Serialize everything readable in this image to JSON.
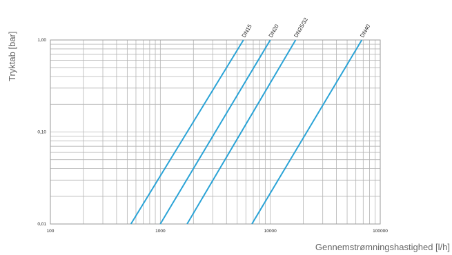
{
  "chart_data": {
    "type": "line",
    "xscale": "log",
    "yscale": "log",
    "xlim": [
      100,
      100000
    ],
    "ylim": [
      0.01,
      1.0
    ],
    "xlabel": "Gennemstrømningshastighed [l/h]",
    "ylabel": "Tryktab [bar]",
    "x_ticks": [
      {
        "value": 100,
        "label": "100"
      },
      {
        "value": 1000,
        "label": "1000"
      },
      {
        "value": 10000,
        "label": "10000"
      },
      {
        "value": 100000,
        "label": "100000"
      }
    ],
    "y_ticks": [
      {
        "value": 0.01,
        "label": "0,01"
      },
      {
        "value": 0.1,
        "label": "0,10"
      },
      {
        "value": 1.0,
        "label": "1,00"
      }
    ],
    "grid": true,
    "series_color": "#2aa3d6",
    "series": [
      {
        "name": "DN15",
        "x": [
          540,
          5700
        ],
        "y": [
          0.01,
          1.0
        ]
      },
      {
        "name": "DN20",
        "x": [
          1000,
          10000
        ],
        "y": [
          0.01,
          1.0
        ]
      },
      {
        "name": "DN25/32",
        "x": [
          1750,
          17000
        ],
        "y": [
          0.01,
          1.0
        ]
      },
      {
        "name": "DN40",
        "x": [
          6800,
          68000
        ],
        "y": [
          0.01,
          1.0
        ]
      }
    ]
  }
}
